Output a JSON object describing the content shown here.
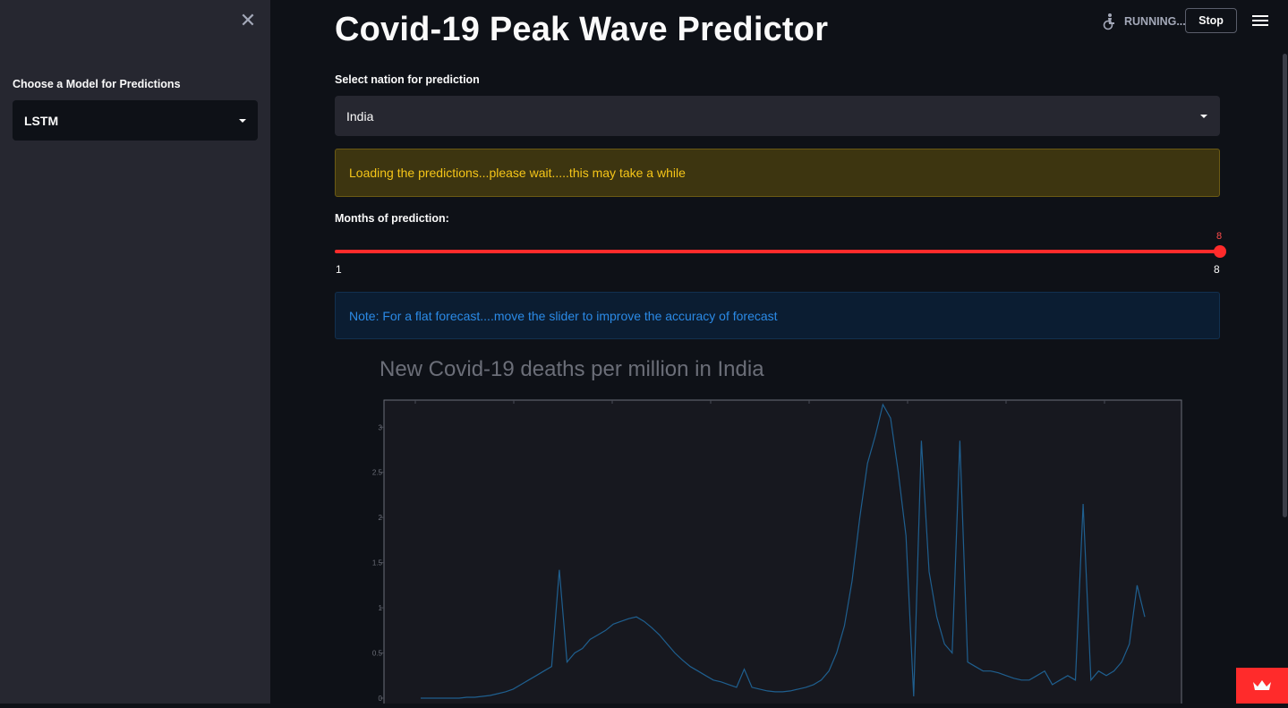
{
  "sidebar": {
    "close_icon": "close-icon",
    "model_label": "Choose a Model for Predictions",
    "model_selected": "LSTM"
  },
  "header": {
    "status": "RUNNING...",
    "stop_label": "Stop",
    "menu_icon": "hamburger-menu-icon"
  },
  "main": {
    "title": "Covid-19 Peak Wave Predictor",
    "nation_label": "Select nation for prediction",
    "nation_selected": "India",
    "warning_text": "Loading the predictions...please wait.....this may take a while",
    "slider": {
      "label": "Months of prediction:",
      "value": "8",
      "min": "1",
      "max": "8"
    },
    "info_text": "Note: For a flat forecast....move the slider to improve the accuracy of forecast"
  },
  "colors": {
    "accent": "#ff2b2b",
    "warning_text": "#f5c518",
    "info_text": "#2b8ae6",
    "series": "#1f5f8f"
  },
  "chart_data": {
    "type": "line",
    "title": "New Covid-19 deaths per million in India",
    "xlabel": "",
    "ylabel": "",
    "ylim": [
      0,
      3.3
    ],
    "yticks": [
      "0",
      "0.5",
      "1",
      "1.5",
      "2",
      "2.5",
      "3"
    ],
    "grid": false,
    "series": [
      {
        "values": [
          0,
          0,
          0,
          0,
          0,
          0,
          0.01,
          0.01,
          0.02,
          0.03,
          0.05,
          0.07,
          0.1,
          0.15,
          0.2,
          0.25,
          0.3,
          0.35,
          1.42,
          0.4,
          0.5,
          0.55,
          0.65,
          0.7,
          0.75,
          0.82,
          0.85,
          0.88,
          0.9,
          0.85,
          0.78,
          0.7,
          0.6,
          0.5,
          0.42,
          0.35,
          0.3,
          0.25,
          0.2,
          0.18,
          0.15,
          0.12,
          0.32,
          0.12,
          0.1,
          0.08,
          0.07,
          0.07,
          0.08,
          0.1,
          0.12,
          0.15,
          0.2,
          0.3,
          0.5,
          0.8,
          1.3,
          2.0,
          2.6,
          2.9,
          3.25,
          3.1,
          2.5,
          1.8,
          0.02,
          2.85,
          1.4,
          0.9,
          0.6,
          0.5,
          2.85,
          0.4,
          0.35,
          0.3,
          0.3,
          0.28,
          0.25,
          0.22,
          0.2,
          0.2,
          0.25,
          0.3,
          0.15,
          0.2,
          0.25,
          0.2,
          2.15,
          0.2,
          0.3,
          0.25,
          0.3,
          0.4,
          0.6,
          1.25,
          0.9
        ]
      }
    ]
  }
}
